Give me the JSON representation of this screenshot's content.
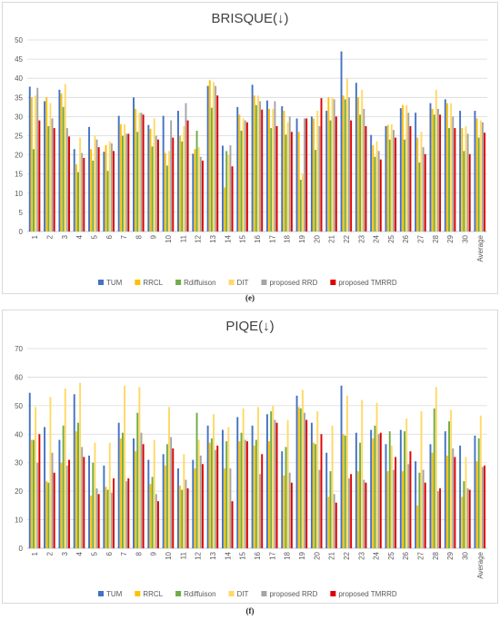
{
  "colors": {
    "TUM": "#4472C4",
    "RRCL": "#FFC000",
    "Rdiffuison": "#70AD47",
    "DIT": "#FFD966",
    "proposed RRD": "#A5A5A5",
    "proposed TMRRD": "#E00000",
    "grid": "#d9d9d9"
  },
  "chart_data": [
    {
      "type": "bar",
      "title": "BRISQUE(↓)",
      "caption": "(e)",
      "ylim": [
        0,
        50
      ],
      "yticks": [
        0,
        5,
        10,
        15,
        20,
        25,
        30,
        35,
        40,
        45,
        50
      ],
      "grid": true,
      "legend": "bottom",
      "categories": [
        "1",
        "2",
        "3",
        "4",
        "5",
        "6",
        "7",
        "8",
        "9",
        "10",
        "11",
        "12",
        "13",
        "14",
        "15",
        "16",
        "17",
        "18",
        "19",
        "20",
        "21",
        "22",
        "23",
        "24",
        "25",
        "26",
        "27",
        "28",
        "29",
        "30",
        "Average"
      ],
      "series": [
        {
          "name": "TUM",
          "values": [
            37.8,
            34.0,
            37.0,
            21.5,
            27.3,
            20.8,
            30.2,
            35.0,
            27.8,
            30.2,
            31.5,
            20.3,
            38.0,
            22.4,
            32.5,
            38.3,
            34.2,
            32.7,
            29.5,
            30.0,
            31.5,
            47.0,
            38.8,
            25.2,
            27.5,
            32.2,
            31.0,
            33.5,
            34.5,
            31.5,
            31.5
          ]
        },
        {
          "name": "RRCL",
          "values": [
            35.0,
            35.0,
            36.0,
            17.5,
            21.5,
            22.5,
            28.0,
            32.0,
            26.8,
            20.5,
            25.0,
            21.5,
            39.5,
            11.5,
            30.5,
            35.5,
            32.0,
            31.5,
            26.0,
            29.5,
            35.0,
            35.5,
            35.0,
            22.5,
            27.8,
            33.0,
            24.5,
            32.0,
            33.5,
            27.0,
            29.5
          ]
        },
        {
          "name": "Rdiffuison",
          "values": [
            21.5,
            27.5,
            32.5,
            15.5,
            18.5,
            15.8,
            25.0,
            26.0,
            22.2,
            17.2,
            23.5,
            26.3,
            32.3,
            21.0,
            26.3,
            33.0,
            27.0,
            25.3,
            13.5,
            21.3,
            29.0,
            34.5,
            30.5,
            19.5,
            24.0,
            24.0,
            18.0,
            30.5,
            27.0,
            21.0,
            24.5
          ]
        },
        {
          "name": "DIT",
          "values": [
            35.5,
            33.5,
            38.5,
            24.5,
            25.0,
            23.5,
            28.0,
            31.0,
            29.5,
            21.0,
            27.5,
            22.0,
            39.0,
            20.0,
            29.5,
            35.5,
            32.0,
            28.5,
            15.0,
            31.5,
            35.0,
            40.0,
            37.0,
            23.5,
            28.0,
            33.0,
            26.0,
            37.0,
            33.5,
            27.5,
            29.0
          ]
        },
        {
          "name": "proposed RRD",
          "values": [
            37.5,
            29.5,
            27.0,
            20.5,
            24.0,
            23.0,
            25.5,
            31.0,
            25.0,
            29.0,
            33.5,
            19.5,
            38.0,
            22.5,
            29.0,
            34.0,
            34.0,
            30.0,
            29.5,
            27.5,
            34.5,
            35.0,
            32.0,
            21.0,
            26.5,
            31.0,
            22.0,
            32.0,
            30.0,
            25.5,
            28.5
          ]
        },
        {
          "name": "proposed TMRRD",
          "values": [
            29.0,
            27.0,
            24.8,
            19.2,
            22.0,
            21.0,
            25.5,
            30.5,
            24.0,
            24.5,
            29.0,
            18.5,
            35.5,
            17.0,
            28.5,
            31.8,
            27.5,
            26.0,
            29.5,
            34.8,
            30.0,
            29.0,
            27.5,
            18.8,
            24.5,
            27.5,
            20.2,
            30.5,
            27.0,
            20.2,
            25.8
          ]
        }
      ]
    },
    {
      "type": "bar",
      "title": "PIQE(↓)",
      "caption": "(f)",
      "ylim": [
        0,
        70
      ],
      "yticks": [
        0,
        10,
        20,
        30,
        40,
        50,
        60,
        70
      ],
      "grid": true,
      "legend": "bottom",
      "categories": [
        "1",
        "2",
        "3",
        "4",
        "5",
        "6",
        "7",
        "8",
        "9",
        "10",
        "11",
        "12",
        "13",
        "14",
        "15",
        "16",
        "17",
        "18",
        "19",
        "20",
        "21",
        "22",
        "23",
        "24",
        "25",
        "26",
        "27",
        "28",
        "29",
        "30",
        "Average"
      ],
      "series": [
        {
          "name": "TUM",
          "values": [
            54.5,
            42.5,
            38.0,
            54.0,
            32.5,
            29.0,
            44.0,
            38.5,
            31.0,
            33.0,
            28.0,
            31.0,
            43.0,
            41.5,
            46.0,
            43.0,
            47.0,
            34.0,
            53.5,
            44.0,
            33.5,
            57.0,
            40.5,
            41.5,
            36.5,
            41.5,
            30.5,
            36.5,
            41.0,
            36.0,
            39.5
          ]
        },
        {
          "name": "RRCL",
          "values": [
            38.0,
            23.5,
            30.0,
            41.0,
            18.5,
            21.5,
            38.5,
            34.0,
            22.5,
            29.0,
            22.0,
            28.0,
            37.0,
            28.0,
            37.5,
            36.0,
            37.5,
            25.5,
            49.5,
            37.0,
            18.0,
            40.0,
            27.0,
            38.5,
            27.0,
            27.0,
            15.0,
            33.5,
            32.5,
            18.0,
            30.5
          ]
        },
        {
          "name": "Rdiffuison",
          "values": [
            38.0,
            23.0,
            43.0,
            44.0,
            30.0,
            20.5,
            40.5,
            47.5,
            25.0,
            36.5,
            20.5,
            47.5,
            38.5,
            37.5,
            40.5,
            38.0,
            48.0,
            35.5,
            49.0,
            36.5,
            27.0,
            39.5,
            37.0,
            43.0,
            41.0,
            41.0,
            26.5,
            49.0,
            44.5,
            23.5,
            38.5
          ]
        },
        {
          "name": "DIT",
          "values": [
            49.5,
            53.0,
            56.0,
            58.0,
            37.0,
            37.0,
            57.0,
            56.5,
            38.0,
            49.5,
            33.0,
            38.0,
            47.0,
            42.5,
            49.0,
            49.5,
            50.0,
            45.0,
            55.5,
            48.0,
            43.0,
            53.5,
            52.0,
            51.0,
            36.0,
            45.5,
            48.0,
            56.5,
            48.5,
            32.0,
            46.5
          ]
        },
        {
          "name": "proposed RRD",
          "values": [
            30.0,
            33.5,
            29.0,
            35.5,
            21.0,
            19.5,
            23.5,
            40.5,
            19.0,
            39.0,
            24.0,
            32.5,
            34.5,
            28.0,
            38.0,
            26.0,
            45.0,
            26.5,
            47.5,
            27.5,
            19.0,
            24.5,
            24.0,
            40.0,
            27.5,
            29.5,
            27.5,
            20.0,
            35.0,
            21.0,
            28.5
          ]
        },
        {
          "name": "proposed TMRRD",
          "values": [
            40.0,
            26.5,
            31.0,
            32.0,
            19.0,
            24.5,
            24.5,
            36.5,
            16.5,
            35.0,
            21.0,
            29.5,
            36.0,
            16.5,
            37.5,
            33.0,
            44.0,
            23.0,
            45.0,
            40.0,
            16.0,
            26.0,
            23.0,
            40.5,
            32.0,
            34.0,
            23.0,
            21.0,
            32.0,
            20.5,
            29.0
          ]
        }
      ]
    }
  ]
}
